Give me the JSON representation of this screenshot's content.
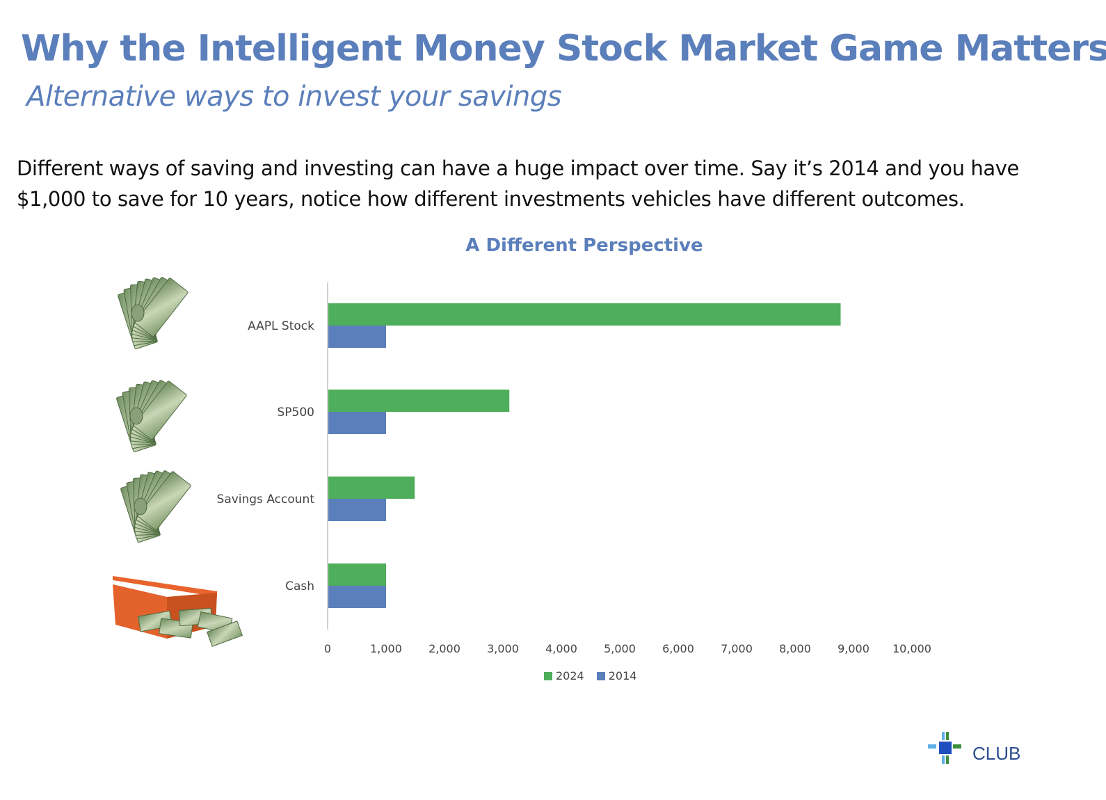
{
  "header": {
    "title": "Why the Intelligent Money Stock Market Game Matters",
    "subtitle": "Alternative ways to invest your savings"
  },
  "body": {
    "text": "Different ways of saving and investing can have a huge impact over time. Say it’s 2014 and you have $1,000 to save for 10 years, notice how different investments vehicles have different outcomes."
  },
  "chart_data": {
    "type": "bar",
    "orientation": "horizontal",
    "title": "A Different Perspective",
    "categories": [
      "AAPL Stock",
      "SP500",
      "Savings Account",
      "Cash"
    ],
    "series": [
      {
        "name": "2024",
        "color": "#4eae5b",
        "values": [
          8780,
          3110,
          1490,
          1000
        ]
      },
      {
        "name": "2014",
        "color": "#5b7fbb",
        "values": [
          1000,
          1000,
          1000,
          1000
        ]
      }
    ],
    "xlim": [
      0,
      10000
    ],
    "xticks": [
      "0",
      "1,000",
      "2,000",
      "3,000",
      "4,000",
      "5,000",
      "6,000",
      "7,000",
      "8,000",
      "9,000",
      "10,000"
    ],
    "xlabel": "",
    "ylabel": "",
    "grid": false,
    "legend_position": "bottom"
  },
  "icons": {
    "row_icons": [
      "money-fan-icon",
      "money-fan-icon",
      "money-fan-icon",
      "money-box-icon"
    ]
  },
  "logo": {
    "text": "CLUB"
  },
  "colors": {
    "accent": "#5b7fbb",
    "green": "#4eae5b"
  }
}
